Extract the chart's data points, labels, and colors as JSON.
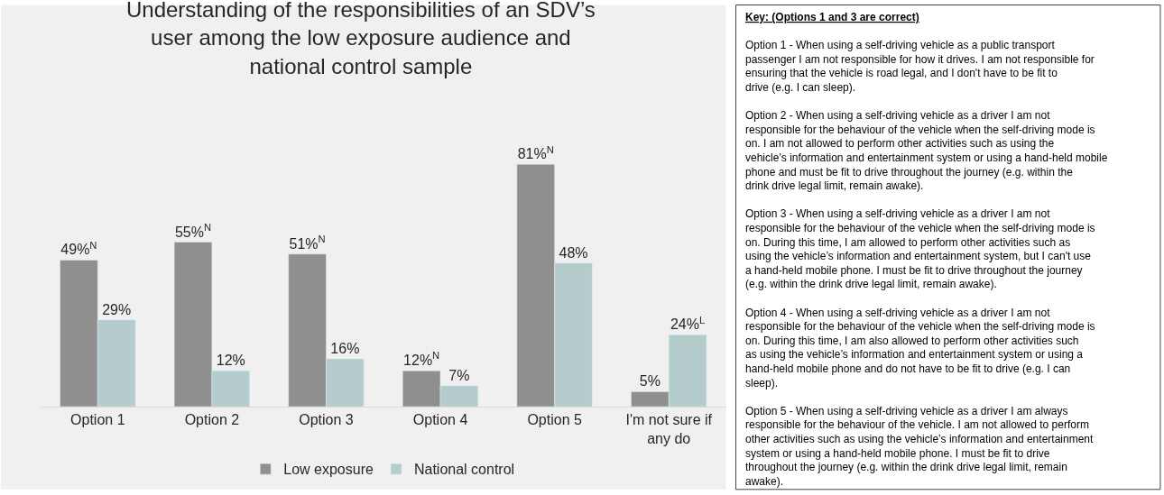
{
  "chart_data": {
    "type": "bar",
    "title": "Understanding of the responsibilities of an SDV’s\nuser among the low exposure audience and\nnational control sample",
    "categories": [
      "Option 1",
      "Option 2",
      "Option 3",
      "Option 4",
      "Option 5",
      "I'm not sure if any do"
    ],
    "series": [
      {
        "name": "Low exposure",
        "color": "#8f8f8f",
        "values": [
          49,
          55,
          51,
          12,
          81,
          5
        ],
        "value_labels": [
          "49%$^{N}$",
          "55%$^{N}$",
          "51%$^{N}$",
          "12%$^{N}$",
          "81%$^{N}$",
          "5%"
        ]
      },
      {
        "name": "National control",
        "color": "#b4cccc",
        "values": [
          29,
          12,
          16,
          7,
          48,
          24
        ],
        "value_labels": [
          "29%",
          "12%",
          "16%",
          "7%",
          "48%",
          "24%$^{L}$"
        ]
      }
    ],
    "legend": "bottom",
    "annotations": [
      "Key: (Options 1 and 3 are correct)",
      "Option 1 - When using a self-driving vehicle as a public transport passenger I am not responsible for how it drives. I am not responsible for ensuring that the vehicle is road legal, and I don't have to be fit to drive (e.g. I can sleep).",
      "Option 2 - When using a self-driving vehicle as a driver I am not responsible for the behaviour of the vehicle when the self-driving mode is on. I am not allowed to perform other activities such as using the vehicle’s information and entertainment system or using a hand-held mobile phone and must be fit to drive throughout the journey (e.g. within the drink drive legal limit, remain awake).",
      "Option 3 - When using a self-driving vehicle as a driver I am not responsible for the behaviour of the vehicle when the self-driving mode is on. During this time, I am allowed to perform other activities such as using the vehicle’s information and entertainment system, but I can't use a hand-held mobile phone. I must be fit to drive throughout the journey (e.g. within the drink drive legal limit, remain awake).",
      "Option 4 - When using a self-driving vehicle as a driver I am not responsible for the behaviour of the vehicle when the self-driving mode is on. During this time, I am also allowed to perform other activities such as using the vehicle’s information and entertainment system or using a hand-held mobile phone and do not have to be fit to drive (e.g. I can sleep).",
      "Option 5 - When using a self-driving vehicle as a driver I am always responsible for the behaviour of the vehicle. I am not allowed to perform other activities such as using the vehicle’s information and entertainment system or using a hand-held mobile phone. I must be fit to drive throughout the journey (e.g. within the drink drive legal limit, remain awake)."
    ]
  }
}
